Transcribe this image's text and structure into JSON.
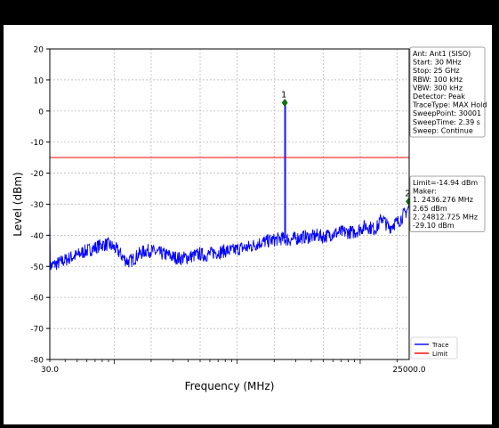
{
  "chart_data": {
    "type": "line",
    "xlabel": "Frequency (MHz)",
    "ylabel": "Level (dBm)",
    "xlim": [
      30.0,
      25000.0
    ],
    "ylim": [
      -80,
      20
    ],
    "x_scale": "log",
    "x_tick_labels": [
      "30.0",
      "25000.0"
    ],
    "y_ticks": [
      20,
      10,
      0,
      -10,
      -20,
      -30,
      -40,
      -50,
      -60,
      -70,
      -80
    ],
    "grid": true,
    "legend_position": "bottom-right",
    "series": [
      {
        "name": "Trace",
        "color": "#0000ff",
        "x": [
          30,
          35,
          40,
          45,
          50,
          55,
          60,
          65,
          70,
          75,
          80,
          90,
          100,
          110,
          120,
          130,
          140,
          150,
          160,
          180,
          200,
          220,
          250,
          280,
          300,
          350,
          400,
          450,
          500,
          550,
          600,
          650,
          700,
          800,
          900,
          1000,
          1100,
          1200,
          1300,
          1400,
          1500,
          1700,
          2000,
          2300,
          2700,
          3000,
          3500,
          4000,
          4500,
          5000,
          5500,
          6000,
          7000,
          8000,
          9000,
          10000,
          11000,
          12000,
          13000,
          14000,
          15000,
          16000,
          17000,
          18000,
          19000,
          20000,
          21000,
          22000,
          23000,
          24000,
          25000
        ],
        "y": [
          -50,
          -49,
          -48,
          -47,
          -46.5,
          -45.5,
          -45,
          -44.5,
          -44,
          -43.5,
          -43,
          -43,
          -44,
          -45.5,
          -47.5,
          -48.5,
          -48,
          -47,
          -46,
          -45,
          -45,
          -45.5,
          -46,
          -46.5,
          -47,
          -47.5,
          -47,
          -46.5,
          -46,
          -46.5,
          -46,
          -45.5,
          -45.5,
          -45,
          -45,
          -44.5,
          -44,
          -44,
          -43.5,
          -43,
          -42.5,
          -42,
          -41.5,
          -41,
          -41.5,
          -41,
          -40.5,
          -40.5,
          -40,
          -40.5,
          -40,
          -39.5,
          -39,
          -39,
          -39,
          -38,
          -37,
          -37.5,
          -38,
          -37,
          -34,
          -36,
          -37.5,
          -37,
          -36,
          -36,
          -35,
          -34,
          -33,
          -32,
          -31
        ]
      },
      {
        "name": "Limit",
        "color": "#ff0000",
        "x": [
          30,
          25000
        ],
        "y": [
          -14.94,
          -14.94
        ]
      }
    ],
    "spike": {
      "x": 2436.276,
      "y": 2.65,
      "base": -41
    },
    "markers": [
      {
        "label": "1",
        "x": 2436.276,
        "y": 2.65
      },
      {
        "label": "2",
        "x": 24812.725,
        "y": -29.1
      }
    ],
    "settings_box": [
      "Ant: Ant1 (SISO)",
      "Start: 30 MHz",
      "Stop: 25 GHz",
      "RBW: 100 kHz",
      "VBW: 300 kHz",
      "Detector: Peak",
      "TraceType: MAX Hold",
      "SweepPoint: 30001",
      "SweepTime: 2.39 s",
      "Sweep: Continue"
    ],
    "marker_box": [
      "Limit=-14.94 dBm",
      "Maker:",
      "1. 2436.276 MHz",
      "     2.65 dBm",
      "2. 24812.725 MHz",
      "     -29.10 dBm"
    ],
    "legend": [
      {
        "name": "Trace",
        "color": "#0000ff"
      },
      {
        "name": "Limit",
        "color": "#ff0000"
      }
    ]
  }
}
